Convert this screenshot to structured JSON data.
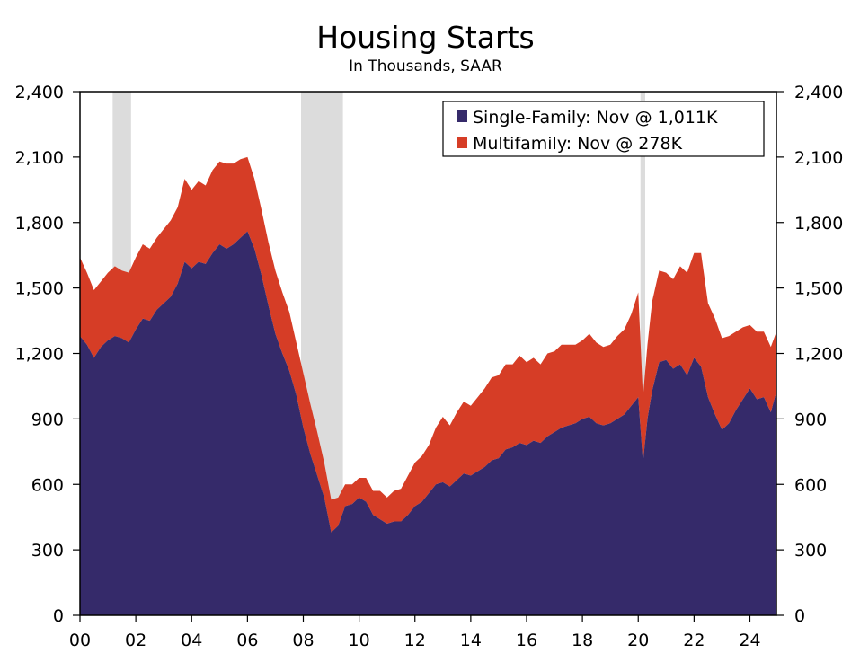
{
  "chart_data": {
    "type": "area",
    "stacked": true,
    "title": "Housing Starts",
    "subtitle": "In Thousands, SAAR",
    "ylim": [
      0,
      2400
    ],
    "yticks": [
      "0",
      "300",
      "600",
      "900",
      "1,200",
      "1,500",
      "1,800",
      "2,100",
      "2,400"
    ],
    "ytick_values": [
      0,
      300,
      600,
      900,
      1200,
      1500,
      1800,
      2100,
      2400
    ],
    "xlim": [
      2000.0,
      2024.95
    ],
    "xticks": [
      "00",
      "02",
      "04",
      "06",
      "08",
      "10",
      "12",
      "14",
      "16",
      "18",
      "20",
      "22",
      "24"
    ],
    "xtick_values": [
      2000,
      2002,
      2004,
      2006,
      2008,
      2010,
      2012,
      2014,
      2016,
      2018,
      2020,
      2022,
      2024
    ],
    "grid": false,
    "legend_position": "top-right",
    "recessions": [
      [
        2001.17,
        2001.83
      ],
      [
        2007.92,
        2009.42
      ],
      [
        2020.08,
        2020.25
      ]
    ],
    "colors": {
      "single_family": "#352a6a",
      "multifamily": "#d63d26",
      "recession": "#dcdcdc"
    },
    "series": [
      {
        "name": "Single-Family: Nov @ 1,011K",
        "x": [
          2000.0,
          2000.25,
          2000.5,
          2000.75,
          2001.0,
          2001.25,
          2001.5,
          2001.75,
          2002.0,
          2002.25,
          2002.5,
          2002.75,
          2003.0,
          2003.25,
          2003.5,
          2003.75,
          2004.0,
          2004.25,
          2004.5,
          2004.75,
          2005.0,
          2005.25,
          2005.5,
          2005.75,
          2006.0,
          2006.25,
          2006.5,
          2006.75,
          2007.0,
          2007.25,
          2007.5,
          2007.75,
          2008.0,
          2008.25,
          2008.5,
          2008.75,
          2009.0,
          2009.25,
          2009.5,
          2009.75,
          2010.0,
          2010.25,
          2010.5,
          2010.75,
          2011.0,
          2011.25,
          2011.5,
          2011.75,
          2012.0,
          2012.25,
          2012.5,
          2012.75,
          2013.0,
          2013.25,
          2013.5,
          2013.75,
          2014.0,
          2014.25,
          2014.5,
          2014.75,
          2015.0,
          2015.25,
          2015.5,
          2015.75,
          2016.0,
          2016.25,
          2016.5,
          2016.75,
          2017.0,
          2017.25,
          2017.5,
          2017.75,
          2018.0,
          2018.25,
          2018.5,
          2018.75,
          2019.0,
          2019.25,
          2019.5,
          2019.75,
          2020.0,
          2020.17,
          2020.33,
          2020.5,
          2020.75,
          2021.0,
          2021.25,
          2021.5,
          2021.75,
          2022.0,
          2022.25,
          2022.5,
          2022.75,
          2023.0,
          2023.25,
          2023.5,
          2023.75,
          2024.0,
          2024.25,
          2024.5,
          2024.75,
          2024.92
        ],
        "values": [
          1280,
          1240,
          1180,
          1230,
          1260,
          1280,
          1270,
          1250,
          1310,
          1360,
          1350,
          1400,
          1430,
          1460,
          1520,
          1620,
          1590,
          1620,
          1610,
          1660,
          1700,
          1680,
          1700,
          1730,
          1760,
          1680,
          1560,
          1420,
          1290,
          1200,
          1120,
          1010,
          860,
          740,
          640,
          540,
          380,
          410,
          500,
          510,
          540,
          520,
          460,
          440,
          420,
          430,
          430,
          460,
          500,
          520,
          560,
          600,
          610,
          590,
          620,
          650,
          640,
          660,
          680,
          710,
          720,
          760,
          770,
          790,
          780,
          800,
          790,
          820,
          840,
          860,
          870,
          880,
          900,
          910,
          880,
          870,
          880,
          900,
          920,
          960,
          1000,
          700,
          900,
          1030,
          1160,
          1170,
          1130,
          1150,
          1100,
          1180,
          1140,
          1000,
          920,
          850,
          880,
          940,
          990,
          1040,
          990,
          1000,
          930,
          1011
        ]
      },
      {
        "name": "Multifamily: Nov @ 278K",
        "x": [
          2000.0,
          2000.25,
          2000.5,
          2000.75,
          2001.0,
          2001.25,
          2001.5,
          2001.75,
          2002.0,
          2002.25,
          2002.5,
          2002.75,
          2003.0,
          2003.25,
          2003.5,
          2003.75,
          2004.0,
          2004.25,
          2004.5,
          2004.75,
          2005.0,
          2005.25,
          2005.5,
          2005.75,
          2006.0,
          2006.25,
          2006.5,
          2006.75,
          2007.0,
          2007.25,
          2007.5,
          2007.75,
          2008.0,
          2008.25,
          2008.5,
          2008.75,
          2009.0,
          2009.25,
          2009.5,
          2009.75,
          2010.0,
          2010.25,
          2010.5,
          2010.75,
          2011.0,
          2011.25,
          2011.5,
          2011.75,
          2012.0,
          2012.25,
          2012.5,
          2012.75,
          2013.0,
          2013.25,
          2013.5,
          2013.75,
          2014.0,
          2014.25,
          2014.5,
          2014.75,
          2015.0,
          2015.25,
          2015.5,
          2015.75,
          2016.0,
          2016.25,
          2016.5,
          2016.75,
          2017.0,
          2017.25,
          2017.5,
          2017.75,
          2018.0,
          2018.25,
          2018.5,
          2018.75,
          2019.0,
          2019.25,
          2019.5,
          2019.75,
          2020.0,
          2020.17,
          2020.33,
          2020.5,
          2020.75,
          2021.0,
          2021.25,
          2021.5,
          2021.75,
          2022.0,
          2022.25,
          2022.5,
          2022.75,
          2023.0,
          2023.25,
          2023.5,
          2023.75,
          2024.0,
          2024.25,
          2024.5,
          2024.75,
          2024.92
        ],
        "values": [
          360,
          330,
          310,
          300,
          310,
          320,
          310,
          320,
          330,
          340,
          330,
          330,
          340,
          350,
          350,
          380,
          360,
          370,
          360,
          380,
          380,
          390,
          370,
          360,
          340,
          320,
          300,
          290,
          290,
          280,
          270,
          240,
          250,
          230,
          200,
          160,
          150,
          130,
          100,
          90,
          90,
          110,
          110,
          130,
          120,
          140,
          150,
          180,
          200,
          210,
          220,
          260,
          300,
          280,
          310,
          330,
          320,
          340,
          360,
          380,
          380,
          390,
          380,
          400,
          380,
          380,
          360,
          380,
          370,
          380,
          370,
          360,
          360,
          380,
          370,
          360,
          360,
          380,
          390,
          420,
          480,
          300,
          340,
          410,
          420,
          400,
          410,
          450,
          470,
          480,
          520,
          430,
          440,
          420,
          400,
          360,
          330,
          290,
          310,
          300,
          300,
          278
        ]
      }
    ]
  }
}
